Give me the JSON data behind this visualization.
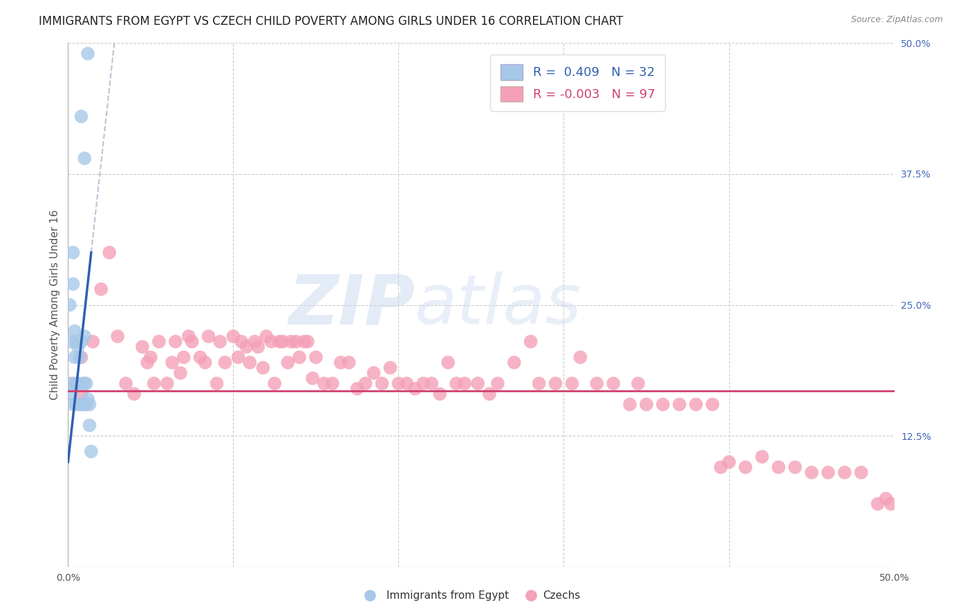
{
  "title": "IMMIGRANTS FROM EGYPT VS CZECH CHILD POVERTY AMONG GIRLS UNDER 16 CORRELATION CHART",
  "source": "Source: ZipAtlas.com",
  "ylabel": "Child Poverty Among Girls Under 16",
  "xlim": [
    0.0,
    0.5
  ],
  "ylim": [
    0.0,
    0.5
  ],
  "yticks_right": [
    0.0,
    0.125,
    0.25,
    0.375,
    0.5
  ],
  "ytick_right_labels": [
    "",
    "12.5%",
    "25.0%",
    "37.5%",
    "50.0%"
  ],
  "blue_R": 0.409,
  "blue_N": 32,
  "pink_R": -0.003,
  "pink_N": 97,
  "blue_color": "#a8c8e8",
  "pink_color": "#f4a0b8",
  "blue_line_color": "#3060b0",
  "pink_line_color": "#d04070",
  "dash_color": "#b0b8d0",
  "blue_scatter_x": [
    0.012,
    0.008,
    0.01,
    0.003,
    0.003,
    0.001,
    0.001,
    0.002,
    0.002,
    0.003,
    0.004,
    0.004,
    0.005,
    0.005,
    0.005,
    0.006,
    0.006,
    0.007,
    0.007,
    0.008,
    0.008,
    0.009,
    0.009,
    0.01,
    0.01,
    0.01,
    0.011,
    0.011,
    0.012,
    0.013,
    0.013,
    0.014
  ],
  "blue_scatter_y": [
    0.49,
    0.43,
    0.39,
    0.3,
    0.27,
    0.25,
    0.175,
    0.215,
    0.165,
    0.155,
    0.225,
    0.2,
    0.215,
    0.175,
    0.155,
    0.21,
    0.175,
    0.2,
    0.155,
    0.215,
    0.155,
    0.175,
    0.155,
    0.22,
    0.175,
    0.155,
    0.175,
    0.155,
    0.16,
    0.155,
    0.135,
    0.11
  ],
  "pink_scatter_x": [
    0.003,
    0.008,
    0.008,
    0.015,
    0.02,
    0.025,
    0.03,
    0.035,
    0.04,
    0.045,
    0.048,
    0.05,
    0.052,
    0.055,
    0.06,
    0.063,
    0.065,
    0.068,
    0.07,
    0.073,
    0.075,
    0.08,
    0.083,
    0.085,
    0.09,
    0.092,
    0.095,
    0.1,
    0.103,
    0.105,
    0.108,
    0.11,
    0.113,
    0.115,
    0.118,
    0.12,
    0.123,
    0.125,
    0.128,
    0.13,
    0.133,
    0.135,
    0.138,
    0.14,
    0.143,
    0.145,
    0.148,
    0.15,
    0.155,
    0.16,
    0.165,
    0.17,
    0.175,
    0.18,
    0.185,
    0.19,
    0.195,
    0.2,
    0.205,
    0.21,
    0.215,
    0.22,
    0.225,
    0.23,
    0.235,
    0.24,
    0.248,
    0.255,
    0.26,
    0.27,
    0.28,
    0.285,
    0.295,
    0.305,
    0.31,
    0.32,
    0.33,
    0.34,
    0.345,
    0.35,
    0.36,
    0.37,
    0.38,
    0.39,
    0.395,
    0.4,
    0.41,
    0.42,
    0.43,
    0.44,
    0.45,
    0.46,
    0.47,
    0.48,
    0.49,
    0.495,
    0.498
  ],
  "pink_scatter_y": [
    0.175,
    0.2,
    0.165,
    0.215,
    0.265,
    0.3,
    0.22,
    0.175,
    0.165,
    0.21,
    0.195,
    0.2,
    0.175,
    0.215,
    0.175,
    0.195,
    0.215,
    0.185,
    0.2,
    0.22,
    0.215,
    0.2,
    0.195,
    0.22,
    0.175,
    0.215,
    0.195,
    0.22,
    0.2,
    0.215,
    0.21,
    0.195,
    0.215,
    0.21,
    0.19,
    0.22,
    0.215,
    0.175,
    0.215,
    0.215,
    0.195,
    0.215,
    0.215,
    0.2,
    0.215,
    0.215,
    0.18,
    0.2,
    0.175,
    0.175,
    0.195,
    0.195,
    0.17,
    0.175,
    0.185,
    0.175,
    0.19,
    0.175,
    0.175,
    0.17,
    0.175,
    0.175,
    0.165,
    0.195,
    0.175,
    0.175,
    0.175,
    0.165,
    0.175,
    0.195,
    0.215,
    0.175,
    0.175,
    0.175,
    0.2,
    0.175,
    0.175,
    0.155,
    0.175,
    0.155,
    0.155,
    0.155,
    0.155,
    0.155,
    0.095,
    0.1,
    0.095,
    0.105,
    0.095,
    0.095,
    0.09,
    0.09,
    0.09,
    0.09,
    0.06,
    0.065,
    0.06
  ],
  "watermark_zip": "ZIP",
  "watermark_atlas": "atlas",
  "background_color": "#ffffff",
  "grid_color": "#cccccc",
  "title_fontsize": 12,
  "axis_label_fontsize": 11,
  "tick_fontsize": 10,
  "legend_fontsize": 13
}
